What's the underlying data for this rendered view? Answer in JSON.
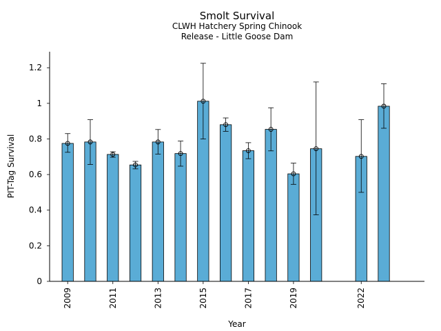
{
  "chart_data": {
    "type": "bar",
    "title": "Smolt Survival",
    "subtitle_lines": [
      "CLWH Hatchery Spring Chinook",
      "Release - Little Goose Dam"
    ],
    "xlabel": "Year",
    "ylabel": "PIT-Tag Survival",
    "xlim": [
      2008.2,
      2024.8
    ],
    "ylim": [
      0,
      1.29
    ],
    "yticks": [
      0,
      0.2,
      0.4,
      0.6,
      0.8,
      1,
      1.2
    ],
    "ytick_labels": [
      "0",
      "0.2",
      "0.4",
      "0.6",
      "0.8",
      "1",
      "1.2"
    ],
    "xticks": [
      2009,
      2011,
      2013,
      2015,
      2017,
      2019,
      2022
    ],
    "xtick_labels": [
      "2009",
      "2011",
      "2013",
      "2015",
      "2017",
      "2019",
      "2022"
    ],
    "grid": false,
    "bar_color": "#5aacd6",
    "bars": [
      {
        "year": 2009,
        "value": 0.775,
        "low": 0.725,
        "high": 0.83
      },
      {
        "year": 2010,
        "value": 0.783,
        "low": 0.657,
        "high": 0.908
      },
      {
        "year": 2011,
        "value": 0.713,
        "low": 0.697,
        "high": 0.728
      },
      {
        "year": 2012,
        "value": 0.654,
        "low": 0.632,
        "high": 0.674
      },
      {
        "year": 2013,
        "value": 0.783,
        "low": 0.715,
        "high": 0.853
      },
      {
        "year": 2014,
        "value": 0.718,
        "low": 0.647,
        "high": 0.788
      },
      {
        "year": 2015,
        "value": 1.012,
        "low": 0.8,
        "high": 1.225
      },
      {
        "year": 2016,
        "value": 0.88,
        "low": 0.843,
        "high": 0.918
      },
      {
        "year": 2017,
        "value": 0.734,
        "low": 0.689,
        "high": 0.779
      },
      {
        "year": 2018,
        "value": 0.854,
        "low": 0.733,
        "high": 0.975
      },
      {
        "year": 2019,
        "value": 0.604,
        "low": 0.545,
        "high": 0.664
      },
      {
        "year": 2020,
        "value": 0.745,
        "low": 0.374,
        "high": 1.12
      },
      {
        "year": 2022,
        "value": 0.702,
        "low": 0.5,
        "high": 0.908
      },
      {
        "year": 2023,
        "value": 0.984,
        "low": 0.86,
        "high": 1.11
      }
    ]
  }
}
